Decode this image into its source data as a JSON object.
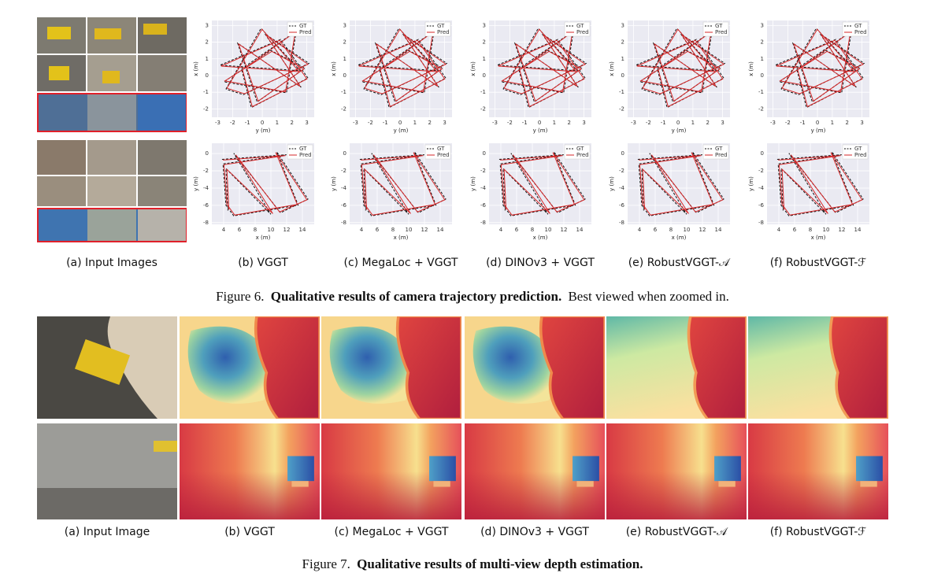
{
  "figure6": {
    "columns": [
      "(a) Input Images",
      "(b) VGGT",
      "(c) MegaLoc + VGGT",
      "(d) DINOv3 + VGGT",
      "(e) RobustVGGT-𝒜",
      "(f) RobustVGGT-ℱ"
    ],
    "legend": [
      "GT",
      "Pred"
    ],
    "plots": [
      {
        "xlabel": "y (m)",
        "ylabel": "x (m)",
        "xlim": [
          -3.4,
          3.5
        ],
        "ylim": [
          -2.5,
          3.3
        ],
        "xticks": [
          -3,
          -2,
          -1,
          0,
          1,
          2,
          3
        ],
        "yticks": [
          -2,
          -1,
          0,
          1,
          2,
          3
        ]
      },
      {
        "xlabel": "x (m)",
        "ylabel": "y (m)",
        "xlim": [
          2.5,
          15.5
        ],
        "ylim": [
          -8.2,
          1.2
        ],
        "xticks": [
          4,
          6,
          8,
          10,
          12,
          14
        ],
        "yticks": [
          -8,
          -6,
          -4,
          -2,
          0
        ]
      }
    ],
    "caption": {
      "label": "Figure 6.",
      "title": "Qualitative results of camera trajectory prediction.",
      "text": "Best viewed when zoomed in."
    }
  },
  "figure7": {
    "columns": [
      "(a) Input Image",
      "(b) VGGT",
      "(c) MegaLoc + VGGT",
      "(d) DINOv3 + VGGT",
      "(e) RobustVGGT-𝒜",
      "(f) RobustVGGT-ℱ"
    ],
    "caption": {
      "label": "Figure 7.",
      "title": "Qualitative results of multi-view depth estimation."
    }
  }
}
